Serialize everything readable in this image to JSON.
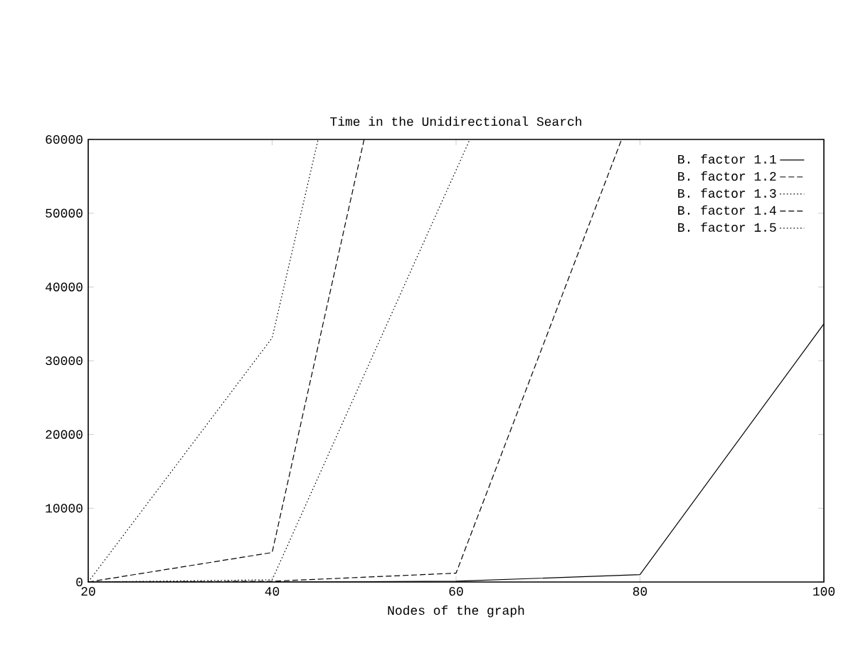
{
  "chart_data": {
    "type": "line",
    "title": "Time in the Unidirectional Search",
    "xlabel": "Nodes of the graph",
    "xlim": [
      20,
      100
    ],
    "xticks": [
      20,
      40,
      60,
      80,
      100
    ],
    "ylim": [
      0,
      60000
    ],
    "yticks": [
      0,
      10000,
      20000,
      30000,
      40000,
      50000,
      60000
    ],
    "grid": false,
    "legend": "top right",
    "marker": "none",
    "series": [
      {
        "name": "B. factor 1.1",
        "color": "#000000",
        "line_style": "solid",
        "x": [
          20,
          40,
          60,
          80,
          100
        ],
        "values": [
          0,
          0,
          100,
          1000,
          35000
        ]
      },
      {
        "name": "B. factor 1.2",
        "color": "#000000",
        "line_style": "dashed",
        "x": [
          20,
          40,
          60,
          78
        ],
        "values": [
          0,
          100,
          1200,
          60000
        ]
      },
      {
        "name": "B. factor 1.3",
        "color": "#000000",
        "line_style": "dotted",
        "x": [
          20,
          40,
          61.5
        ],
        "values": [
          0,
          300,
          60000
        ]
      },
      {
        "name": "B. factor 1.4",
        "color": "#000000",
        "line_style": "dashed",
        "x": [
          20,
          40,
          50
        ],
        "values": [
          0,
          4000,
          60000
        ]
      },
      {
        "name": "B. factor 1.5",
        "color": "#000000",
        "line_style": "dotted",
        "x": [
          20,
          40,
          45
        ],
        "values": [
          0,
          33100,
          60000
        ]
      }
    ]
  }
}
